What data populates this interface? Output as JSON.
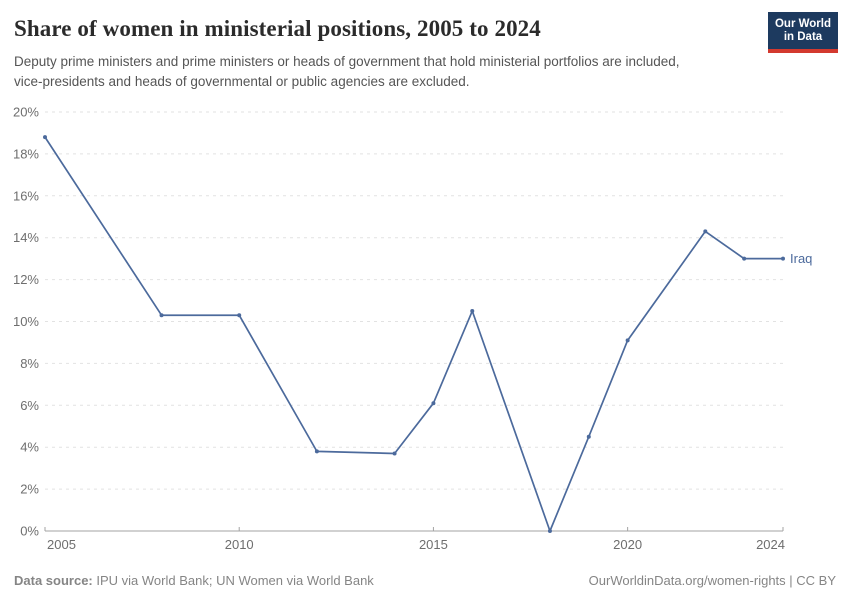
{
  "header": {
    "title": "Share of women in ministerial positions, 2005 to 2024",
    "subtitle": "Deputy prime ministers and prime ministers or heads of government that hold ministerial portfolios are included, vice-presidents and heads of governmental or public agencies are excluded."
  },
  "logo": {
    "line1": "Our World",
    "line2": "in Data",
    "bg_color": "#1d3a5f",
    "accent_color": "#d3392f"
  },
  "chart_data": {
    "type": "line",
    "series": [
      {
        "name": "Iraq",
        "color": "#4c6a9c",
        "x": [
          2005,
          2008,
          2010,
          2012,
          2014,
          2015,
          2016,
          2018,
          2019,
          2020,
          2022,
          2023,
          2024
        ],
        "y": [
          18.8,
          10.3,
          10.3,
          3.8,
          3.7,
          6.1,
          10.5,
          0,
          4.5,
          9.1,
          14.3,
          13,
          13
        ]
      }
    ],
    "title": "Share of women in ministerial positions, 2005 to 2024",
    "xlabel": "",
    "ylabel": "",
    "xlim": [
      2005,
      2024
    ],
    "ylim": [
      0,
      20
    ],
    "xticks": [
      2005,
      2010,
      2015,
      2020,
      2024
    ],
    "yticks": [
      0,
      2,
      4,
      6,
      8,
      10,
      12,
      14,
      16,
      18,
      20
    ],
    "ytick_suffix": "%",
    "grid": "horizontal-dashed",
    "legend_position": "end-of-line"
  },
  "footer": {
    "source_label": "Data source:",
    "source_text": "IPU via World Bank; UN Women via World Bank",
    "credit": "OurWorldinData.org/women-rights | CC BY"
  }
}
